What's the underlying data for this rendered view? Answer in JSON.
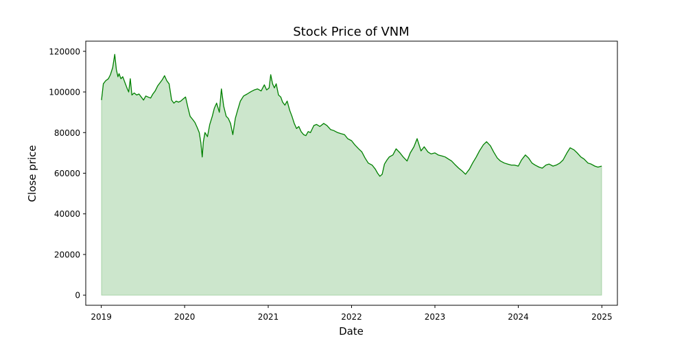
{
  "chart_data": {
    "type": "area",
    "title": "Stock Price of VNM",
    "xlabel": "Date",
    "ylabel": "Close price",
    "xlim": [
      "2018-10-25",
      "2025-03-10"
    ],
    "ylim": [
      -5000,
      125000
    ],
    "x_ticks": [
      "2019-01-01",
      "2020-01-01",
      "2021-01-01",
      "2022-01-01",
      "2023-01-01",
      "2024-01-01",
      "2025-01-01"
    ],
    "x_tick_labels": [
      "2019",
      "2020",
      "2021",
      "2022",
      "2023",
      "2024",
      "2025"
    ],
    "y_ticks": [
      0,
      20000,
      40000,
      60000,
      80000,
      100000,
      120000
    ],
    "y_tick_labels": [
      "0",
      "20000",
      "40000",
      "60000",
      "80000",
      "100000",
      "120000"
    ],
    "grid": false,
    "line_color": "#008000",
    "fill_color": "#008000",
    "fill_alpha": 0.2,
    "series": [
      {
        "x": [
          "2019-01-02",
          "2019-01-10",
          "2019-01-20",
          "2019-02-01",
          "2019-02-10",
          "2019-02-20",
          "2019-03-01",
          "2019-03-08",
          "2019-03-15",
          "2019-03-20",
          "2019-03-28",
          "2019-04-05",
          "2019-04-15",
          "2019-04-25",
          "2019-05-01",
          "2019-05-08",
          "2019-05-15",
          "2019-05-25",
          "2019-06-05",
          "2019-06-15",
          "2019-06-25",
          "2019-07-05",
          "2019-07-15",
          "2019-07-25",
          "2019-08-05",
          "2019-08-15",
          "2019-08-25",
          "2019-09-05",
          "2019-09-15",
          "2019-09-25",
          "2019-10-05",
          "2019-10-15",
          "2019-10-25",
          "2019-11-05",
          "2019-11-15",
          "2019-11-25",
          "2019-12-05",
          "2019-12-15",
          "2019-12-25",
          "2020-01-05",
          "2020-01-15",
          "2020-01-25",
          "2020-02-05",
          "2020-02-15",
          "2020-02-25",
          "2020-03-05",
          "2020-03-12",
          "2020-03-18",
          "2020-03-23",
          "2020-03-30",
          "2020-04-10",
          "2020-04-20",
          "2020-05-01",
          "2020-05-10",
          "2020-05-20",
          "2020-06-01",
          "2020-06-10",
          "2020-06-20",
          "2020-07-01",
          "2020-07-10",
          "2020-07-20",
          "2020-07-30",
          "2020-08-10",
          "2020-08-20",
          "2020-09-01",
          "2020-09-15",
          "2020-10-01",
          "2020-10-15",
          "2020-11-01",
          "2020-11-15",
          "2020-12-01",
          "2020-12-15",
          "2020-12-25",
          "2021-01-05",
          "2021-01-12",
          "2021-01-20",
          "2021-01-28",
          "2021-02-05",
          "2021-02-15",
          "2021-02-25",
          "2021-03-05",
          "2021-03-15",
          "2021-03-25",
          "2021-04-05",
          "2021-04-15",
          "2021-04-25",
          "2021-05-05",
          "2021-05-15",
          "2021-05-25",
          "2021-06-05",
          "2021-06-15",
          "2021-06-25",
          "2021-07-05",
          "2021-07-20",
          "2021-08-01",
          "2021-08-15",
          "2021-09-01",
          "2021-09-15",
          "2021-10-01",
          "2021-10-15",
          "2021-11-01",
          "2021-11-15",
          "2021-12-01",
          "2021-12-15",
          "2022-01-01",
          "2022-01-15",
          "2022-02-01",
          "2022-02-15",
          "2022-03-01",
          "2022-03-15",
          "2022-04-01",
          "2022-04-15",
          "2022-04-25",
          "2022-05-05",
          "2022-05-15",
          "2022-05-25",
          "2022-06-05",
          "2022-06-15",
          "2022-07-01",
          "2022-07-15",
          "2022-08-01",
          "2022-08-15",
          "2022-09-01",
          "2022-09-15",
          "2022-10-01",
          "2022-10-15",
          "2022-11-01",
          "2022-11-15",
          "2022-12-01",
          "2022-12-15",
          "2023-01-01",
          "2023-01-15",
          "2023-02-01",
          "2023-02-15",
          "2023-03-01",
          "2023-03-15",
          "2023-04-01",
          "2023-04-15",
          "2023-05-01",
          "2023-05-15",
          "2023-06-01",
          "2023-06-15",
          "2023-07-01",
          "2023-07-15",
          "2023-08-01",
          "2023-08-15",
          "2023-09-01",
          "2023-09-15",
          "2023-10-01",
          "2023-10-15",
          "2023-11-01",
          "2023-11-15",
          "2023-12-01",
          "2023-12-15",
          "2024-01-01",
          "2024-01-15",
          "2024-02-01",
          "2024-02-15",
          "2024-03-01",
          "2024-03-15",
          "2024-04-01",
          "2024-04-15",
          "2024-05-01",
          "2024-05-15",
          "2024-06-01",
          "2024-06-15",
          "2024-07-01",
          "2024-07-15",
          "2024-08-01",
          "2024-08-15",
          "2024-09-01",
          "2024-09-15",
          "2024-10-01",
          "2024-10-15",
          "2024-11-01",
          "2024-11-15",
          "2024-12-01",
          "2024-12-15",
          "2024-12-31"
        ],
        "y": [
          96000,
          104000,
          105500,
          106500,
          108500,
          112000,
          118500,
          111000,
          107500,
          109000,
          106500,
          107500,
          104500,
          101500,
          100000,
          106500,
          98500,
          99500,
          98500,
          99000,
          97500,
          96000,
          98000,
          97500,
          97000,
          99000,
          100500,
          103000,
          104500,
          106000,
          108000,
          105500,
          104000,
          96000,
          94500,
          95500,
          95000,
          95500,
          96500,
          97500,
          92500,
          88000,
          86500,
          85000,
          82500,
          80000,
          75000,
          68000,
          75500,
          80000,
          78000,
          84000,
          88000,
          92000,
          94500,
          90000,
          101500,
          93000,
          88000,
          87000,
          84500,
          79000,
          87000,
          91000,
          95500,
          98000,
          99000,
          100000,
          101000,
          101500,
          100500,
          103500,
          101000,
          102000,
          108500,
          104000,
          102000,
          104000,
          98500,
          97500,
          95000,
          93500,
          95500,
          91000,
          88000,
          84500,
          82000,
          83000,
          80500,
          79000,
          78500,
          80500,
          80000,
          83500,
          84000,
          83000,
          84500,
          83500,
          81500,
          81000,
          80000,
          79500,
          79000,
          77000,
          76000,
          74000,
          72000,
          70500,
          67500,
          65000,
          64000,
          62000,
          60000,
          58500,
          59500,
          64500,
          66500,
          68000,
          69000,
          72000,
          70000,
          68000,
          66000,
          70000,
          73000,
          77000,
          71000,
          73000,
          70500,
          69500,
          70000,
          69000,
          68500,
          68000,
          67000,
          66000,
          64000,
          62500,
          61000,
          59500,
          62000,
          65000,
          68000,
          71000,
          74000,
          75500,
          73500,
          70500,
          67500,
          66000,
          65000,
          64500,
          64000,
          64000,
          63500,
          66500,
          69000,
          67500,
          65000,
          64000,
          63000,
          62500,
          64000,
          64500,
          63500,
          64000,
          65000,
          66500,
          70000,
          72500,
          71500,
          70000,
          68000,
          67000,
          65000,
          64500,
          63500,
          63000,
          63500
        ]
      }
    ]
  }
}
